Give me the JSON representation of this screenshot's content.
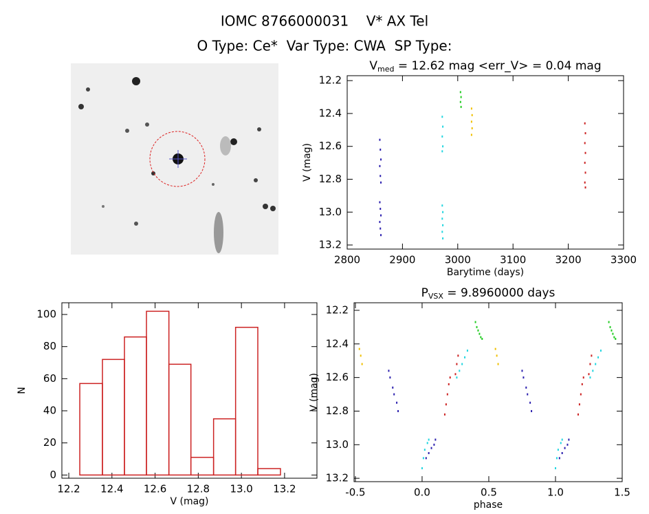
{
  "header": {
    "title": "IOMC 8766000031    V* AX Tel",
    "subtitle": "O Type: Ce*  Var Type: CWA  SP Type:"
  },
  "chart_data": [
    {
      "type": "scatter",
      "title": [
        "V",
        "med",
        " = 12.62 mag <err_V> = 0.04 mag"
      ],
      "x_label": "Barytime (days)",
      "y_label": "V (mag)",
      "xlim": [
        2800,
        3300
      ],
      "xticks": [
        2800,
        2900,
        3000,
        3100,
        3200,
        3300
      ],
      "ylim": [
        13.225,
        12.17
      ],
      "yticks": [
        12.2,
        12.4,
        12.6,
        12.8,
        {
          "value": 13,
          "label": "13.0"
        },
        13.2
      ],
      "series": [
        {
          "color": "#2b1fae",
          "x": [
            2859,
            2860,
            2861,
            2859,
            2860,
            2861,
            2859,
            2860,
            2861,
            2859,
            2860,
            2861
          ],
          "values": [
            12.56,
            12.62,
            12.68,
            12.72,
            12.78,
            12.82,
            12.94,
            12.98,
            13.02,
            13.06,
            13.1,
            13.14
          ]
        },
        {
          "color": "#22d6e0",
          "x": [
            2972,
            2973,
            2972,
            2973,
            2972,
            2972,
            2973,
            2972,
            2973,
            2972,
            2973
          ],
          "values": [
            12.42,
            12.48,
            12.54,
            12.6,
            12.63,
            12.96,
            13.0,
            13.04,
            13.08,
            13.12,
            13.16
          ]
        },
        {
          "color": "#22cc22",
          "x": [
            3005,
            3006,
            3005,
            3006
          ],
          "values": [
            12.27,
            12.3,
            12.33,
            12.36
          ]
        },
        {
          "color": "#f0c000",
          "x": [
            3025,
            3026,
            3025,
            3026,
            3025
          ],
          "values": [
            12.37,
            12.41,
            12.45,
            12.49,
            12.53
          ]
        },
        {
          "color": "#cc2222",
          "x": [
            3230,
            3231,
            3230,
            3231,
            3230,
            3231,
            3230,
            3231
          ],
          "values": [
            12.46,
            12.52,
            12.58,
            12.64,
            12.7,
            12.76,
            12.82,
            12.85
          ]
        }
      ]
    },
    {
      "type": "histogram",
      "x_label": "V (mag)",
      "y_label": "N",
      "color": "#cc2222",
      "xlim": [
        12.168,
        13.35
      ],
      "xticks": [
        12.2,
        12.4,
        12.6,
        12.8,
        {
          "value": 13,
          "label": "13.0"
        },
        13.2
      ],
      "ylim": [
        -2,
        107.3
      ],
      "yticks": [
        0,
        20,
        40,
        60,
        80,
        100
      ],
      "bins": [
        12.251,
        12.356,
        12.458,
        12.56,
        12.664,
        12.766,
        12.871,
        12.973,
        13.076,
        13.181
      ],
      "values": [
        57,
        72,
        86,
        102,
        69,
        11,
        35,
        92,
        4
      ]
    },
    {
      "type": "scatter",
      "title": [
        "P",
        "VSX",
        " = 9.8960000 days"
      ],
      "x_label": "phase",
      "y_label": "V (mag)",
      "xlim": [
        -0.51,
        1.5
      ],
      "xticks": [
        -0.5,
        {
          "value": 0,
          "label": "0.0"
        },
        0.5,
        {
          "value": 1,
          "label": "1.0"
        },
        1.5
      ],
      "ylim": [
        13.22,
        12.155
      ],
      "yticks": [
        12.2,
        12.4,
        12.6,
        12.8,
        {
          "value": 13,
          "label": "13.0"
        },
        13.2
      ],
      "series": [
        {
          "color": "#f0c000",
          "x": [
            -0.47,
            -0.46,
            -0.45,
            0.55,
            0.56,
            0.57
          ],
          "values": [
            12.43,
            12.47,
            12.52,
            12.43,
            12.47,
            12.52
          ]
        },
        {
          "color": "#2b1fae",
          "x": [
            -0.25,
            -0.24,
            -0.22,
            -0.21,
            -0.19,
            -0.18,
            0.03,
            0.05,
            0.07,
            0.09,
            0.1,
            0.75,
            0.76,
            0.78,
            0.79,
            0.81,
            0.82,
            1.03,
            1.05,
            1.07,
            1.09,
            1.1
          ],
          "values": [
            12.56,
            12.6,
            12.66,
            12.7,
            12.75,
            12.8,
            13.08,
            13.05,
            13.02,
            13.0,
            12.97,
            12.56,
            12.6,
            12.66,
            12.7,
            12.75,
            12.8,
            13.08,
            13.05,
            13.02,
            13.0,
            12.97
          ]
        },
        {
          "color": "#22d6e0",
          "x": [
            0.0,
            0.01,
            0.02,
            0.04,
            0.05,
            0.26,
            0.28,
            0.3,
            0.32,
            0.34,
            1.0,
            1.01,
            1.02,
            1.04,
            1.05,
            1.26,
            1.28,
            1.3,
            1.32,
            1.34
          ],
          "values": [
            13.14,
            13.08,
            13.03,
            12.99,
            12.97,
            12.6,
            12.56,
            12.52,
            12.48,
            12.44,
            13.14,
            13.08,
            13.03,
            12.99,
            12.97,
            12.6,
            12.56,
            12.52,
            12.48,
            12.44
          ]
        },
        {
          "color": "#cc2222",
          "x": [
            0.17,
            0.18,
            0.19,
            0.2,
            0.21,
            0.25,
            0.26,
            0.27,
            1.17,
            1.18,
            1.19,
            1.2,
            1.21,
            1.25,
            1.26,
            1.27
          ],
          "values": [
            12.82,
            12.76,
            12.7,
            12.64,
            12.6,
            12.58,
            12.52,
            12.47,
            12.82,
            12.76,
            12.7,
            12.64,
            12.6,
            12.58,
            12.52,
            12.47
          ]
        },
        {
          "color": "#22cc22",
          "x": [
            0.4,
            0.41,
            0.42,
            0.43,
            0.44,
            0.45,
            1.4,
            1.41,
            1.42,
            1.43,
            1.44,
            1.45
          ],
          "values": [
            12.27,
            12.3,
            12.32,
            12.34,
            12.36,
            12.37,
            12.27,
            12.3,
            12.32,
            12.34,
            12.36,
            12.37
          ]
        }
      ]
    }
  ]
}
